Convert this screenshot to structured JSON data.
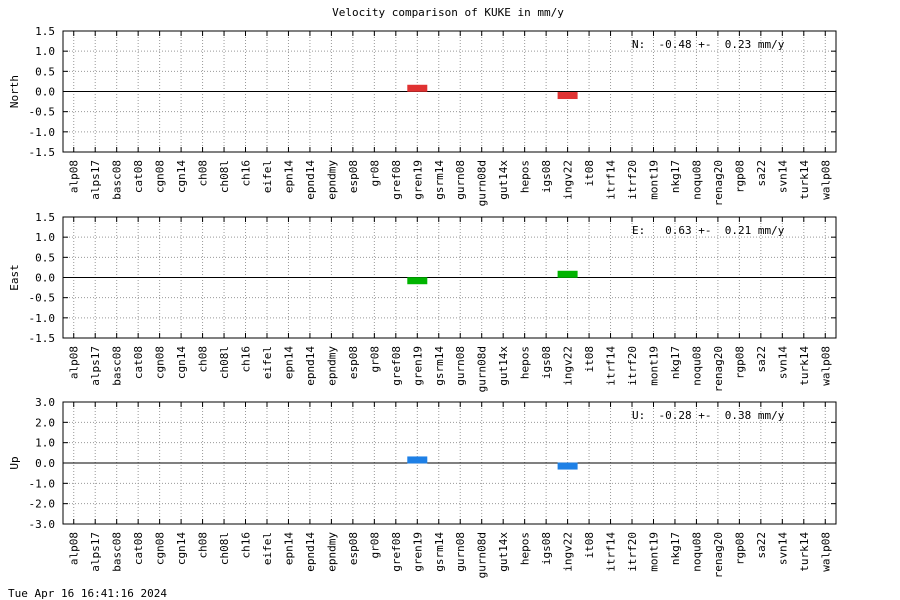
{
  "footer": "Tue Apr 16 16:41:16 2024",
  "chart_data": [
    {
      "type": "scatter",
      "title": "Velocity comparison of KUKE in mm/y",
      "y_label": "North",
      "annotation": "N:  -0.48 +-  0.23 mm/y",
      "categories": [
        "alp08",
        "alps17",
        "basc08",
        "cat08",
        "cgn08",
        "cgn14",
        "ch08",
        "ch08l",
        "ch16",
        "eifel",
        "epn14",
        "epnd14",
        "epndmy",
        "esp08",
        "gr08",
        "gref08",
        "gren19",
        "gsrm14",
        "gurn08",
        "gurn08d",
        "gut14x",
        "hepos",
        "igs08",
        "ingv22",
        "it08",
        "itrf14",
        "itrf20",
        "mont19",
        "nkg17",
        "noqu08",
        "renag20",
        "rgp08",
        "sa22",
        "svn14",
        "turk14",
        "walp08"
      ],
      "series": [
        {
          "color": "#e03232",
          "values": [
            null,
            null,
            null,
            null,
            null,
            null,
            null,
            null,
            null,
            null,
            null,
            null,
            null,
            null,
            null,
            null,
            0.08,
            null,
            null,
            null,
            null,
            null,
            null,
            -0.1,
            null,
            null,
            null,
            null,
            null,
            null,
            null,
            null,
            null,
            null,
            null,
            null
          ]
        }
      ],
      "ylim": [
        -1.5,
        1.5
      ],
      "yticks": [
        1.5,
        {
          "value": 1,
          "label": "1.0"
        },
        0.5,
        {
          "value": 0,
          "label": "0.0"
        },
        -0.5,
        {
          "value": -1,
          "label": "-1.0"
        },
        -1.5
      ],
      "grid": true
    },
    {
      "type": "scatter",
      "y_label": "East",
      "annotation": "E:   0.63 +-  0.21 mm/y",
      "categories": [
        "alp08",
        "alps17",
        "basc08",
        "cat08",
        "cgn08",
        "cgn14",
        "ch08",
        "ch08l",
        "ch16",
        "eifel",
        "epn14",
        "epnd14",
        "epndmy",
        "esp08",
        "gr08",
        "gref08",
        "gren19",
        "gsrm14",
        "gurn08",
        "gurn08d",
        "gut14x",
        "hepos",
        "igs08",
        "ingv22",
        "it08",
        "itrf14",
        "itrf20",
        "mont19",
        "nkg17",
        "noqu08",
        "renag20",
        "rgp08",
        "sa22",
        "svn14",
        "turk14",
        "walp08"
      ],
      "series": [
        {
          "color": "#00b400",
          "values": [
            null,
            null,
            null,
            null,
            null,
            null,
            null,
            null,
            null,
            null,
            null,
            null,
            null,
            null,
            null,
            null,
            -0.08,
            null,
            null,
            null,
            null,
            null,
            null,
            0.08,
            null,
            null,
            null,
            null,
            null,
            null,
            null,
            null,
            null,
            null,
            null,
            null
          ]
        }
      ],
      "ylim": [
        -1.5,
        1.5
      ],
      "yticks": [
        1.5,
        {
          "value": 1,
          "label": "1.0"
        },
        0.5,
        {
          "value": 0,
          "label": "0.0"
        },
        -0.5,
        {
          "value": -1,
          "label": "-1.0"
        },
        -1.5
      ],
      "grid": true
    },
    {
      "type": "scatter",
      "y_label": "Up",
      "annotation": "U:  -0.28 +-  0.38 mm/y",
      "categories": [
        "alp08",
        "alps17",
        "basc08",
        "cat08",
        "cgn08",
        "cgn14",
        "ch08",
        "ch08l",
        "ch16",
        "eifel",
        "epn14",
        "epnd14",
        "epndmy",
        "esp08",
        "gr08",
        "gref08",
        "gren19",
        "gsrm14",
        "gurn08",
        "gurn08d",
        "gut14x",
        "hepos",
        "igs08",
        "ingv22",
        "it08",
        "itrf14",
        "itrf20",
        "mont19",
        "nkg17",
        "noqu08",
        "renag20",
        "rgp08",
        "sa22",
        "svn14",
        "turk14",
        "walp08"
      ],
      "series": [
        {
          "color": "#1e80e6",
          "values": [
            null,
            null,
            null,
            null,
            null,
            null,
            null,
            null,
            null,
            null,
            null,
            null,
            null,
            null,
            null,
            null,
            0.15,
            null,
            null,
            null,
            null,
            null,
            null,
            -0.15,
            null,
            null,
            null,
            null,
            null,
            null,
            null,
            null,
            null,
            null,
            null,
            null
          ]
        }
      ],
      "ylim": [
        -3,
        3
      ],
      "yticks": [
        {
          "value": 3,
          "label": "3.0"
        },
        {
          "value": 2,
          "label": "2.0"
        },
        {
          "value": 1,
          "label": "1.0"
        },
        {
          "value": 0,
          "label": "0.0"
        },
        {
          "value": -1,
          "label": "-1.0"
        },
        {
          "value": -2,
          "label": "-2.0"
        },
        {
          "value": -3,
          "label": "-3.0"
        }
      ],
      "grid": true
    }
  ]
}
